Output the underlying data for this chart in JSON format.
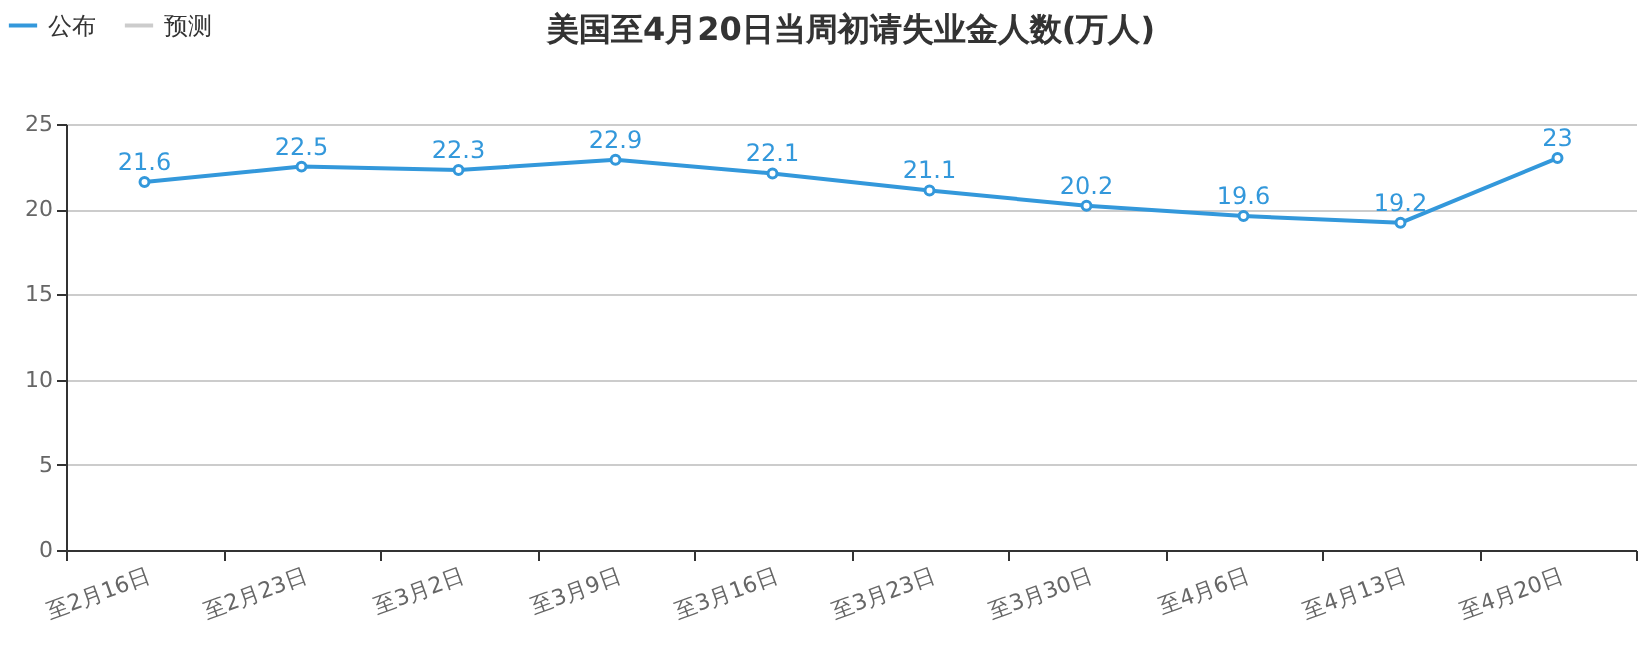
{
  "chart_data": {
    "type": "line",
    "title": "美国至4月20日当周初请失业金人数(万人)",
    "categories": [
      "至2月16日",
      "至2月23日",
      "至3月2日",
      "至3月9日",
      "至3月16日",
      "至3月23日",
      "至3月30日",
      "至4月6日",
      "至4月13日",
      "至4月20日"
    ],
    "series": [
      {
        "name": "公布",
        "color": "#3398db",
        "values": [
          21.6,
          22.5,
          22.3,
          22.9,
          22.1,
          21.1,
          20.2,
          19.6,
          19.2,
          23
        ]
      },
      {
        "name": "预测",
        "color": "#cccccc",
        "values": [
          null,
          null,
          null,
          null,
          null,
          null,
          null,
          null,
          null,
          null
        ]
      }
    ],
    "ylim": [
      0,
      25
    ],
    "yticks": [
      0,
      5,
      10,
      15,
      20,
      25
    ],
    "grid": "y",
    "legend": "top left",
    "marker": "circle",
    "data_labels": true
  }
}
